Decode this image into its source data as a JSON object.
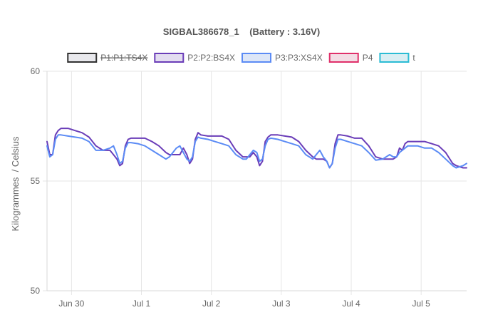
{
  "chart_data": {
    "type": "line",
    "title": "SIGBAL386678_1    (Battery : 3.16V)",
    "ylabel": "Kilogrammes  / Celsius",
    "xlabel": "",
    "ylim": [
      50,
      60
    ],
    "y_ticks": [
      "60",
      "55",
      "50"
    ],
    "x_range": [
      0,
      6.0
    ],
    "x_ticks": [
      {
        "label": "Jun 30",
        "x": 0.35
      },
      {
        "label": "Jul 1",
        "x": 1.35
      },
      {
        "label": "Jul 2",
        "x": 2.35
      },
      {
        "label": "Jul 3",
        "x": 3.35
      },
      {
        "label": "Jul 4",
        "x": 4.35
      },
      {
        "label": "Jul 5",
        "x": 5.35
      }
    ],
    "grid": true,
    "legend_position": "top",
    "legend": [
      {
        "label": "P1:P1:TS4X",
        "stroke": "#333333",
        "fill": "#e8e8ec",
        "hidden": true
      },
      {
        "label": "P2:P2:BS4X",
        "stroke": "#6a3db8",
        "fill": "#e3ddf0",
        "hidden": false
      },
      {
        "label": "P3:P3:XS4X",
        "stroke": "#5b8bf5",
        "fill": "#dde6f7",
        "hidden": false
      },
      {
        "label": "P4",
        "stroke": "#e0306a",
        "fill": "#f3dde5",
        "hidden": false
      },
      {
        "label": "t",
        "stroke": "#2bbcd4",
        "fill": "#d9eef3",
        "hidden": false
      }
    ],
    "series": [
      {
        "name": "P2:P2:BS4X",
        "color": "#6a3db8",
        "x": [
          0.0,
          0.04,
          0.08,
          0.12,
          0.16,
          0.2,
          0.3,
          0.4,
          0.5,
          0.6,
          0.7,
          0.8,
          0.9,
          0.95,
          1.0,
          1.04,
          1.08,
          1.12,
          1.16,
          1.2,
          1.3,
          1.4,
          1.5,
          1.6,
          1.7,
          1.75,
          1.8,
          1.85,
          1.9,
          1.95,
          2.0,
          2.04,
          2.08,
          2.12,
          2.16,
          2.2,
          2.3,
          2.4,
          2.5,
          2.6,
          2.7,
          2.8,
          2.85,
          2.9,
          2.95,
          3.0,
          3.04,
          3.08,
          3.12,
          3.16,
          3.2,
          3.3,
          3.4,
          3.5,
          3.6,
          3.7,
          3.8,
          3.85,
          3.9,
          3.95,
          4.0,
          4.04,
          4.08,
          4.12,
          4.16,
          4.2,
          4.3,
          4.4,
          4.5,
          4.6,
          4.7,
          4.8,
          4.9,
          4.95,
          5.0,
          5.04,
          5.08,
          5.12,
          5.16,
          5.2,
          5.3,
          5.4,
          5.5,
          5.6,
          5.7,
          5.8,
          5.85,
          5.9,
          5.95,
          6.0
        ],
        "y": [
          56.8,
          56.2,
          56.2,
          57.1,
          57.3,
          57.4,
          57.4,
          57.3,
          57.2,
          57.0,
          56.6,
          56.4,
          56.4,
          56.2,
          56.0,
          55.7,
          55.8,
          56.6,
          56.9,
          56.95,
          56.95,
          56.95,
          56.8,
          56.6,
          56.3,
          56.2,
          56.2,
          56.2,
          56.2,
          56.5,
          56.2,
          55.8,
          56.0,
          56.9,
          57.2,
          57.1,
          57.05,
          57.05,
          57.05,
          56.9,
          56.4,
          56.1,
          56.1,
          56.1,
          56.3,
          56.1,
          55.7,
          55.9,
          56.8,
          57.0,
          57.1,
          57.1,
          57.05,
          57.0,
          56.8,
          56.4,
          56.1,
          56.0,
          56.0,
          56.0,
          55.9,
          55.6,
          55.8,
          56.7,
          57.1,
          57.1,
          57.05,
          56.95,
          56.95,
          56.6,
          56.1,
          56.0,
          56.0,
          56.0,
          56.1,
          56.5,
          56.4,
          56.7,
          56.8,
          56.8,
          56.8,
          56.8,
          56.7,
          56.6,
          56.3,
          55.8,
          55.7,
          55.65,
          55.6,
          55.6
        ]
      },
      {
        "name": "P3:P3:XS4X",
        "color": "#5b8bf5",
        "x": [
          0.0,
          0.04,
          0.08,
          0.12,
          0.16,
          0.2,
          0.3,
          0.4,
          0.5,
          0.6,
          0.7,
          0.8,
          0.9,
          0.95,
          1.0,
          1.04,
          1.08,
          1.12,
          1.16,
          1.2,
          1.3,
          1.4,
          1.5,
          1.6,
          1.7,
          1.75,
          1.8,
          1.85,
          1.9,
          1.95,
          2.0,
          2.04,
          2.08,
          2.12,
          2.16,
          2.2,
          2.3,
          2.4,
          2.5,
          2.6,
          2.7,
          2.8,
          2.85,
          2.9,
          2.95,
          3.0,
          3.04,
          3.08,
          3.12,
          3.16,
          3.2,
          3.3,
          3.4,
          3.5,
          3.6,
          3.7,
          3.8,
          3.85,
          3.9,
          3.95,
          4.0,
          4.04,
          4.08,
          4.12,
          4.16,
          4.2,
          4.3,
          4.4,
          4.5,
          4.6,
          4.7,
          4.8,
          4.9,
          4.95,
          5.0,
          5.04,
          5.08,
          5.12,
          5.16,
          5.2,
          5.3,
          5.4,
          5.5,
          5.6,
          5.7,
          5.8,
          5.85,
          5.9,
          5.95,
          6.0
        ],
        "y": [
          56.6,
          56.1,
          56.2,
          56.9,
          57.1,
          57.1,
          57.05,
          57.0,
          56.95,
          56.8,
          56.4,
          56.4,
          56.5,
          56.6,
          56.2,
          55.8,
          55.9,
          56.5,
          56.75,
          56.75,
          56.7,
          56.6,
          56.4,
          56.2,
          56.0,
          56.1,
          56.3,
          56.5,
          56.6,
          56.3,
          56.0,
          55.9,
          56.1,
          56.8,
          57.0,
          56.95,
          56.9,
          56.8,
          56.7,
          56.6,
          56.2,
          56.0,
          56.0,
          56.2,
          56.4,
          56.3,
          55.9,
          56.0,
          56.6,
          56.9,
          56.95,
          56.9,
          56.8,
          56.7,
          56.6,
          56.2,
          56.0,
          56.2,
          56.4,
          56.1,
          55.9,
          55.6,
          55.8,
          56.5,
          56.9,
          56.9,
          56.8,
          56.7,
          56.6,
          56.3,
          55.95,
          56.0,
          56.2,
          56.1,
          56.1,
          56.3,
          56.4,
          56.5,
          56.6,
          56.6,
          56.6,
          56.5,
          56.5,
          56.3,
          56.0,
          55.7,
          55.6,
          55.65,
          55.7,
          55.8
        ]
      }
    ]
  }
}
